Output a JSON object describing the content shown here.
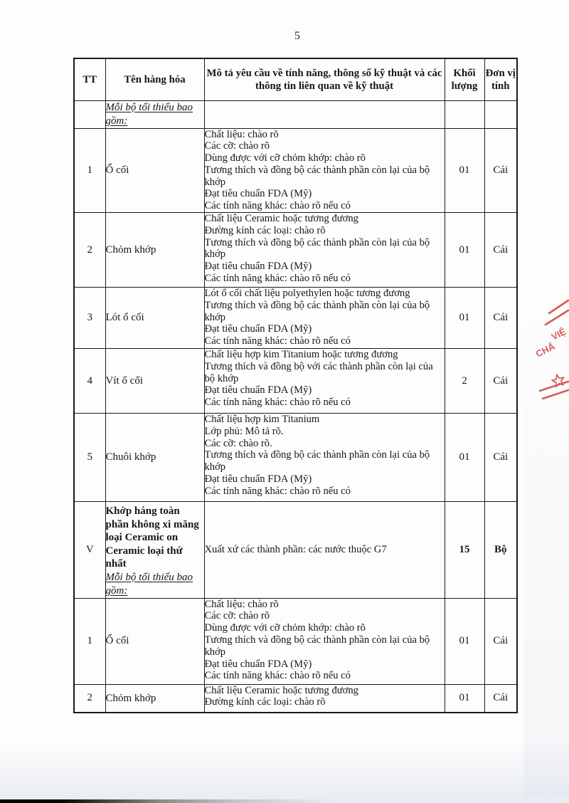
{
  "page": {
    "number": "5"
  },
  "table": {
    "headers": {
      "tt": "TT",
      "name": "Tên hàng hóa",
      "desc": "Mô tả yêu cầu về tính năng, thông số kỹ thuật và các thông tin liên quan về kỹ thuật",
      "qty": "Khối lượng",
      "unit": "Đơn vị tính"
    },
    "rows": [
      {
        "tt": "",
        "name": "",
        "note": "Mỗi bộ tối thiểu bao gồm:",
        "desc": [],
        "qty": "",
        "unit": ""
      },
      {
        "tt": "1",
        "name": "Ổ cối",
        "desc": [
          "Chất liệu: chào rõ",
          "Các cỡ: chào rõ",
          "Dùng được với cỡ chỏm khớp: chào rõ",
          "Tương thích và đồng bộ các thành phần còn lại của bộ khớp",
          "Đạt tiêu chuẩn FDA (Mỹ)",
          "Các tính năng khác: chào rõ nếu có"
        ],
        "qty": "01",
        "unit": "Cái"
      },
      {
        "tt": "2",
        "name": "Chỏm khớp",
        "desc": [
          "Chất liệu Ceramic hoặc tương đương",
          "Đường kính các loại: chào rõ",
          "Tương thích và đồng bộ các thành phần còn lại của bộ khớp",
          "Đạt tiêu chuẩn FDA (Mỹ)",
          "Các tính năng khác: chào rõ nếu có"
        ],
        "qty": "01",
        "unit": "Cái"
      },
      {
        "tt": "3",
        "name": "Lót ổ cối",
        "desc": [
          "Lót ổ cối chất liệu polyethylen hoặc tương đương",
          "Tương thích và đồng bộ các thành phần còn lại của bộ khớp",
          "Đạt tiêu chuẩn FDA (Mỹ)",
          "Các tính năng khác: chào rõ nếu có"
        ],
        "qty": "01",
        "unit": "Cái"
      },
      {
        "tt": "4",
        "name": "Vít ổ cối",
        "desc": [
          "Chất liệu hợp kim Titanium hoặc tương đương",
          "Tương thích và đồng bộ với các thành phần còn lại của bộ khớp",
          "Đạt tiêu chuẩn FDA (Mỹ)",
          "Các tính năng khác: chào rõ nếu có"
        ],
        "qty": "2",
        "unit": "Cái"
      },
      {
        "tt": "5",
        "name": "Chuôi khớp",
        "desc": [
          "Chất liệu hợp kim Titanium",
          "Lớp phủ: Mô tả rõ.",
          "Các cỡ: chào rõ.",
          "Tương thích và đồng bộ các thành phần còn lại của bộ khớp",
          "Đạt tiêu chuẩn FDA (Mỹ)",
          "Các tính năng khác: chào rõ nếu có"
        ],
        "qty": "01",
        "unit": "Cái"
      },
      {
        "tt": "V",
        "name": "Khớp háng toàn phần không xi măng loại Ceramic on Ceramic loại thứ nhất",
        "note": "Mỗi bộ tối thiểu bao gồm:",
        "bold": true,
        "desc": [
          "Xuất xứ các thành phần: các nước thuộc G7"
        ],
        "qty": "15",
        "unit": "Bộ"
      },
      {
        "tt": "1",
        "name": "Ổ cối",
        "desc": [
          "Chất liệu: chào rõ",
          "Các cỡ: chào rõ",
          "Dùng được với cỡ chỏm khớp: chào rõ",
          "Tương thích và đồng bộ các thành phần còn lại của bộ khớp",
          "Đạt tiêu chuẩn FDA (Mỹ)",
          "Các tính năng khác: chào rõ nếu có"
        ],
        "qty": "01",
        "unit": "Cái"
      },
      {
        "tt": "2",
        "name": "Chỏm khớp",
        "desc": [
          "Chất liệu Ceramic hoặc tương đương",
          "Đường kính các loại: chào rõ"
        ],
        "qty": "01",
        "unit": "Cái"
      }
    ]
  },
  "stamp": {
    "fragment_line1": "VIỆ",
    "fragment_line2": "CHẤ",
    "color": "#d0423e"
  }
}
